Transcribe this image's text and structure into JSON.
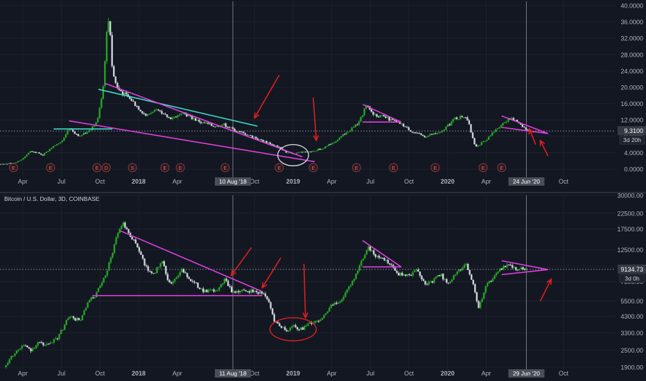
{
  "chart_data": [
    {
      "type": "candlestick",
      "scale": "linear",
      "ylim": [
        -1,
        41
      ],
      "yticks": [
        0,
        4,
        8,
        12,
        16,
        20,
        24,
        28,
        32,
        36,
        40
      ],
      "ytick_labels": [
        "0.0000",
        "4.0000",
        "8.0000",
        "12.0000",
        "16.0000",
        "20.0000",
        "24.0000",
        "28.0000",
        "32.0000",
        "36.0000",
        "40.0000"
      ],
      "xticks": [
        {
          "t": 0.25,
          "label": "Apr",
          "bold": false
        },
        {
          "t": 0.5,
          "label": "Jul",
          "bold": false
        },
        {
          "t": 0.75,
          "label": "Oct",
          "bold": false
        },
        {
          "t": 1.0,
          "label": "2018",
          "bold": true
        },
        {
          "t": 1.25,
          "label": "Apr",
          "bold": false
        },
        {
          "t": 1.75,
          "label": "Oct",
          "bold": false
        },
        {
          "t": 2.0,
          "label": "2019",
          "bold": true
        },
        {
          "t": 2.25,
          "label": "Apr",
          "bold": false
        },
        {
          "t": 2.5,
          "label": "Jul",
          "bold": false
        },
        {
          "t": 2.75,
          "label": "Oct",
          "bold": false
        },
        {
          "t": 3.0,
          "label": "2020",
          "bold": true
        },
        {
          "t": 3.25,
          "label": "Apr",
          "bold": false
        },
        {
          "t": 3.75,
          "label": "Oct",
          "bold": false
        }
      ],
      "crosshair": {
        "date_label": "10 Aug '18",
        "date_t": 1.61,
        "price_label": "9.3100",
        "price": 9.31,
        "countdown": "3d 20h"
      },
      "right_line_t": 3.51,
      "right_date_label": "24 Jun '20",
      "events": [
        {
          "t": 0.04,
          "label": "E"
        },
        {
          "t": 0.19,
          "label": "E"
        },
        {
          "t": 0.43,
          "label": "E"
        },
        {
          "t": 0.73,
          "label": "E"
        },
        {
          "t": 0.79,
          "label": "D"
        },
        {
          "t": 0.96,
          "label": "S"
        },
        {
          "t": 1.17,
          "label": "E"
        },
        {
          "t": 1.27,
          "label": "E"
        },
        {
          "t": 1.56,
          "label": "E"
        },
        {
          "t": 1.91,
          "label": "E"
        },
        {
          "t": 2.13,
          "label": "E"
        },
        {
          "t": 2.41,
          "label": "E"
        },
        {
          "t": 2.65,
          "label": "E"
        },
        {
          "t": 2.92,
          "label": "E"
        },
        {
          "t": 3.23,
          "label": "E"
        },
        {
          "t": 3.35,
          "label": "E"
        }
      ],
      "price_path": [
        [
          0,
          1.0
        ],
        [
          0.1,
          1.2
        ],
        [
          0.2,
          1.5
        ],
        [
          0.25,
          2.5
        ],
        [
          0.3,
          4.5
        ],
        [
          0.38,
          3.5
        ],
        [
          0.45,
          5.5
        ],
        [
          0.5,
          6.5
        ],
        [
          0.55,
          10.0
        ],
        [
          0.62,
          8.0
        ],
        [
          0.68,
          9.5
        ],
        [
          0.73,
          11.5
        ],
        [
          0.77,
          20.0
        ],
        [
          0.79,
          32.0
        ],
        [
          0.81,
          38.0
        ],
        [
          0.83,
          24.0
        ],
        [
          0.86,
          20.0
        ],
        [
          0.9,
          18.5
        ],
        [
          0.95,
          17.0
        ],
        [
          1.0,
          15.0
        ],
        [
          1.05,
          13.0
        ],
        [
          1.1,
          14.5
        ],
        [
          1.2,
          12.5
        ],
        [
          1.3,
          13.5
        ],
        [
          1.4,
          11.5
        ],
        [
          1.5,
          10.5
        ],
        [
          1.55,
          11.0
        ],
        [
          1.62,
          9.5
        ],
        [
          1.7,
          8.5
        ],
        [
          1.8,
          7.0
        ],
        [
          1.9,
          5.5
        ],
        [
          1.96,
          4.0
        ],
        [
          2.0,
          3.8
        ],
        [
          2.05,
          4.2
        ],
        [
          2.12,
          4.3
        ],
        [
          2.2,
          5.2
        ],
        [
          2.28,
          7.0
        ],
        [
          2.35,
          9.0
        ],
        [
          2.43,
          11.5
        ],
        [
          2.47,
          15.5
        ],
        [
          2.52,
          13.5
        ],
        [
          2.6,
          12.5
        ],
        [
          2.7,
          11.0
        ],
        [
          2.78,
          9.0
        ],
        [
          2.85,
          8.0
        ],
        [
          2.9,
          8.5
        ],
        [
          2.96,
          9.0
        ],
        [
          3.05,
          12.5
        ],
        [
          3.12,
          13.0
        ],
        [
          3.18,
          5.5
        ],
        [
          3.25,
          7.0
        ],
        [
          3.32,
          10.0
        ],
        [
          3.4,
          12.5
        ],
        [
          3.46,
          11.5
        ],
        [
          3.52,
          9.3
        ]
      ],
      "lines": [
        {
          "color": "#39e0c8",
          "points": [
            [
              0.74,
              19.5
            ],
            [
              1.77,
              10.5
            ]
          ]
        },
        {
          "color": "#39e0c8",
          "points": [
            [
              0.45,
              9.8
            ],
            [
              0.83,
              9.8
            ]
          ]
        },
        {
          "color": "#e040e0",
          "points": [
            [
              0.78,
              21.0
            ],
            [
              2.06,
              3.0
            ]
          ]
        },
        {
          "color": "#e040e0",
          "points": [
            [
              0.55,
              11.8
            ],
            [
              2.14,
              1.8
            ]
          ]
        },
        {
          "color": "#e040e0",
          "points": [
            [
              2.45,
              15.8
            ],
            [
              2.7,
              11.5
            ]
          ]
        },
        {
          "color": "#e040e0",
          "points": [
            [
              2.45,
              11.5
            ],
            [
              2.7,
              11.5
            ]
          ]
        },
        {
          "color": "#e040e0",
          "points": [
            [
              3.35,
              13.0
            ],
            [
              3.65,
              8.7
            ]
          ]
        },
        {
          "color": "#e040e0",
          "points": [
            [
              3.35,
              10.2
            ],
            [
              3.65,
              8.7
            ]
          ]
        }
      ],
      "arrows": [
        {
          "from": [
            1.91,
            23.0
          ],
          "to": [
            1.75,
            12.5
          ]
        },
        {
          "from": [
            2.13,
            17.5
          ],
          "to": [
            2.15,
            7.0
          ]
        },
        {
          "from": [
            3.57,
            6.0
          ],
          "to": [
            3.53,
            9.8
          ]
        },
        {
          "from": [
            3.65,
            3.2
          ],
          "to": [
            3.6,
            7.0
          ]
        }
      ],
      "ellipses": [
        {
          "t": 2.0,
          "y": 3.4,
          "rt": 0.1,
          "ry": 2.6
        }
      ]
    },
    {
      "type": "candlestick",
      "scale": "log",
      "title": "Bitcoin / U.S. Dollar, 3D, COINBASE",
      "ylim": [
        1900,
        30000
      ],
      "yticks": [
        1900,
        2500,
        3300,
        4300,
        5500,
        7500,
        9500,
        12500,
        17500,
        22500,
        30000
      ],
      "ytick_labels": [
        "1900.00",
        "2500.00",
        "3300.00",
        "4300.00",
        "5500.00",
        "7500.00",
        "9500.00",
        "12500.00",
        "17500.00",
        "22500.00",
        "30000.00"
      ],
      "xticks": [
        {
          "t": 0.25,
          "label": "Apr",
          "bold": false
        },
        {
          "t": 0.5,
          "label": "Jul",
          "bold": false
        },
        {
          "t": 0.75,
          "label": "Oct",
          "bold": false
        },
        {
          "t": 1.0,
          "label": "2018",
          "bold": true
        },
        {
          "t": 1.25,
          "label": "Apr",
          "bold": false
        },
        {
          "t": 1.75,
          "label": "Oct",
          "bold": false
        },
        {
          "t": 2.0,
          "label": "2019",
          "bold": true
        },
        {
          "t": 2.25,
          "label": "Apr",
          "bold": false
        },
        {
          "t": 2.5,
          "label": "Jul",
          "bold": false
        },
        {
          "t": 2.75,
          "label": "Oct",
          "bold": false
        },
        {
          "t": 3.0,
          "label": "2020",
          "bold": true
        },
        {
          "t": 3.25,
          "label": "Apr",
          "bold": false
        },
        {
          "t": 3.75,
          "label": "Oct",
          "bold": false
        }
      ],
      "crosshair": {
        "date_label": "11 Aug '18",
        "date_t": 1.61,
        "price_label": "9134.73",
        "price": 9134.73,
        "countdown": "3d 0h"
      },
      "right_line_t": 3.51,
      "right_date_label": "29 Jun '20",
      "price_path": [
        [
          0.13,
          1900
        ],
        [
          0.18,
          2300
        ],
        [
          0.25,
          2700
        ],
        [
          0.3,
          2500
        ],
        [
          0.35,
          2800
        ],
        [
          0.42,
          2700
        ],
        [
          0.48,
          3100
        ],
        [
          0.55,
          4300
        ],
        [
          0.62,
          4000
        ],
        [
          0.68,
          5500
        ],
        [
          0.72,
          6000
        ],
        [
          0.78,
          8000
        ],
        [
          0.82,
          11000
        ],
        [
          0.86,
          16000
        ],
        [
          0.9,
          19500
        ],
        [
          0.94,
          16000
        ],
        [
          0.98,
          14000
        ],
        [
          1.02,
          11000
        ],
        [
          1.06,
          9000
        ],
        [
          1.1,
          8500
        ],
        [
          1.15,
          10500
        ],
        [
          1.2,
          7200
        ],
        [
          1.28,
          9000
        ],
        [
          1.35,
          7500
        ],
        [
          1.42,
          6500
        ],
        [
          1.5,
          6400
        ],
        [
          1.56,
          7800
        ],
        [
          1.6,
          6400
        ],
        [
          1.7,
          6500
        ],
        [
          1.8,
          6300
        ],
        [
          1.84,
          5500
        ],
        [
          1.88,
          4000
        ],
        [
          1.92,
          3700
        ],
        [
          1.96,
          3400
        ],
        [
          2.0,
          3700
        ],
        [
          2.05,
          3500
        ],
        [
          2.1,
          3800
        ],
        [
          2.18,
          4100
        ],
        [
          2.25,
          5100
        ],
        [
          2.32,
          5700
        ],
        [
          2.4,
          8000
        ],
        [
          2.45,
          11000
        ],
        [
          2.49,
          13000
        ],
        [
          2.53,
          11500
        ],
        [
          2.6,
          10500
        ],
        [
          2.68,
          8500
        ],
        [
          2.75,
          8200
        ],
        [
          2.8,
          9300
        ],
        [
          2.85,
          7300
        ],
        [
          2.9,
          7500
        ],
        [
          2.95,
          8500
        ],
        [
          3.0,
          7300
        ],
        [
          3.06,
          8600
        ],
        [
          3.12,
          10000
        ],
        [
          3.17,
          7000
        ],
        [
          3.2,
          4900
        ],
        [
          3.25,
          7000
        ],
        [
          3.32,
          8800
        ],
        [
          3.38,
          9700
        ],
        [
          3.45,
          9300
        ],
        [
          3.52,
          9134.73
        ]
      ],
      "lines": [
        {
          "color": "#e040e0",
          "points": [
            [
              0.88,
              17000
            ],
            [
              1.8,
              6400
            ]
          ]
        },
        {
          "color": "#e040e0",
          "points": [
            [
              0.7,
              6000
            ],
            [
              1.8,
              6000
            ]
          ]
        },
        {
          "color": "#e040e0",
          "points": [
            [
              2.45,
              14500
            ],
            [
              2.7,
              9500
            ]
          ]
        },
        {
          "color": "#e040e0",
          "points": [
            [
              2.45,
              9500
            ],
            [
              2.7,
              9500
            ]
          ]
        },
        {
          "color": "#e040e0",
          "points": [
            [
              3.35,
              10500
            ],
            [
              3.65,
              9100
            ]
          ]
        },
        {
          "color": "#e040e0",
          "points": [
            [
              3.35,
              8400
            ],
            [
              3.65,
              9100
            ]
          ]
        }
      ],
      "arrows": [
        {
          "from": [
            1.73,
            13000
          ],
          "to": [
            1.6,
            8300
          ]
        },
        {
          "from": [
            1.92,
            11000
          ],
          "to": [
            1.8,
            6800
          ]
        },
        {
          "from": [
            2.07,
            10000
          ],
          "to": [
            2.08,
            4200
          ]
        },
        {
          "from": [
            3.6,
            5500
          ],
          "to": [
            3.67,
            7800
          ]
        }
      ],
      "ellipses": [
        {
          "t": 2.0,
          "y": 3550,
          "rt": 0.15,
          "ryTop": 4200,
          "ryBot": 2900
        }
      ]
    }
  ],
  "colors": {
    "background": "#131722",
    "grid": "#1e222d",
    "axis_text": "#b2b5be",
    "up": "#26a626",
    "down": "#d1d4dc",
    "crosshair": "#787b86",
    "arrow": "#e02020"
  }
}
